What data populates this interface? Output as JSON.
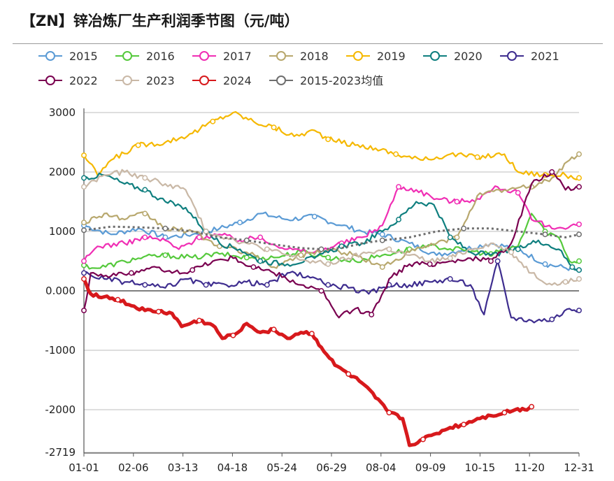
{
  "title": "【ZN】锌冶炼厂生产利润季节图（元/吨）",
  "chart_data": {
    "type": "line",
    "x_ticks": [
      "01-01",
      "02-06",
      "03-13",
      "04-18",
      "05-24",
      "06-29",
      "08-04",
      "09-09",
      "10-15",
      "11-20",
      "12-31"
    ],
    "y_ticks": [
      3000,
      2000,
      1000,
      0,
      -1000,
      -2000,
      -2719
    ],
    "y_tick_labels": [
      "3000",
      "2000",
      "1000",
      "0.000",
      "-1000",
      "-2000",
      "-2719"
    ],
    "ylim": [
      -2719,
      3000
    ],
    "xlim": [
      0,
      365
    ],
    "grid": "horizontal",
    "legend_position": "top",
    "series": [
      {
        "name": "2015",
        "color": "#5b9bd5",
        "points": [
          [
            0,
            1100
          ],
          [
            20,
            950
          ],
          [
            40,
            1050
          ],
          [
            60,
            900
          ],
          [
            80,
            950
          ],
          [
            100,
            1050
          ],
          [
            115,
            1150
          ],
          [
            130,
            1300
          ],
          [
            150,
            1200
          ],
          [
            170,
            1250
          ],
          [
            190,
            1100
          ],
          [
            205,
            1000
          ],
          [
            220,
            950
          ],
          [
            240,
            800
          ],
          [
            260,
            600
          ],
          [
            280,
            700
          ],
          [
            300,
            800
          ],
          [
            320,
            700
          ],
          [
            340,
            450
          ],
          [
            365,
            350
          ]
        ]
      },
      {
        "name": "2016",
        "color": "#55c93c",
        "points": [
          [
            0,
            430
          ],
          [
            10,
            380
          ],
          [
            40,
            550
          ],
          [
            60,
            600
          ],
          [
            80,
            560
          ],
          [
            100,
            620
          ],
          [
            120,
            560
          ],
          [
            140,
            560
          ],
          [
            160,
            660
          ],
          [
            180,
            560
          ],
          [
            200,
            500
          ],
          [
            220,
            600
          ],
          [
            240,
            700
          ],
          [
            260,
            750
          ],
          [
            280,
            680
          ],
          [
            300,
            620
          ],
          [
            320,
            750
          ],
          [
            330,
            1300
          ],
          [
            340,
            1000
          ],
          [
            350,
            900
          ],
          [
            358,
            500
          ],
          [
            365,
            500
          ]
        ]
      },
      {
        "name": "2017",
        "color": "#f02eb4",
        "points": [
          [
            0,
            500
          ],
          [
            10,
            750
          ],
          [
            30,
            800
          ],
          [
            45,
            900
          ],
          [
            60,
            850
          ],
          [
            70,
            700
          ],
          [
            85,
            900
          ],
          [
            100,
            950
          ],
          [
            115,
            850
          ],
          [
            130,
            900
          ],
          [
            150,
            700
          ],
          [
            170,
            650
          ],
          [
            190,
            800
          ],
          [
            205,
            900
          ],
          [
            220,
            1100
          ],
          [
            232,
            1750
          ],
          [
            245,
            1700
          ],
          [
            260,
            1550
          ],
          [
            275,
            1500
          ],
          [
            290,
            1550
          ],
          [
            305,
            1750
          ],
          [
            320,
            1650
          ],
          [
            330,
            1200
          ],
          [
            345,
            1050
          ],
          [
            365,
            1120
          ]
        ]
      },
      {
        "name": "2018",
        "color": "#b8a86e",
        "points": [
          [
            0,
            1150
          ],
          [
            15,
            1300
          ],
          [
            30,
            1200
          ],
          [
            45,
            1300
          ],
          [
            60,
            1050
          ],
          [
            80,
            1000
          ],
          [
            100,
            750
          ],
          [
            120,
            650
          ],
          [
            140,
            400
          ],
          [
            160,
            600
          ],
          [
            180,
            700
          ],
          [
            200,
            600
          ],
          [
            220,
            400
          ],
          [
            240,
            650
          ],
          [
            260,
            800
          ],
          [
            275,
            900
          ],
          [
            290,
            1600
          ],
          [
            310,
            1700
          ],
          [
            330,
            1750
          ],
          [
            345,
            1900
          ],
          [
            358,
            2200
          ],
          [
            365,
            2300
          ]
        ]
      },
      {
        "name": "2019",
        "color": "#f5b800",
        "points": [
          [
            0,
            2280
          ],
          [
            10,
            1950
          ],
          [
            20,
            2200
          ],
          [
            40,
            2450
          ],
          [
            60,
            2500
          ],
          [
            80,
            2650
          ],
          [
            95,
            2850
          ],
          [
            110,
            3000
          ],
          [
            125,
            2850
          ],
          [
            140,
            2750
          ],
          [
            155,
            2600
          ],
          [
            170,
            2700
          ],
          [
            180,
            2550
          ],
          [
            200,
            2450
          ],
          [
            215,
            2400
          ],
          [
            230,
            2300
          ],
          [
            250,
            2200
          ],
          [
            270,
            2300
          ],
          [
            290,
            2250
          ],
          [
            310,
            2300
          ],
          [
            320,
            2000
          ],
          [
            340,
            1950
          ],
          [
            355,
            1950
          ],
          [
            365,
            1900
          ]
        ]
      },
      {
        "name": "2020",
        "color": "#0f7f7f",
        "points": [
          [
            0,
            1900
          ],
          [
            15,
            1950
          ],
          [
            30,
            1800
          ],
          [
            45,
            1700
          ],
          [
            60,
            1500
          ],
          [
            75,
            1400
          ],
          [
            90,
            1000
          ],
          [
            100,
            800
          ],
          [
            115,
            700
          ],
          [
            130,
            500
          ],
          [
            150,
            450
          ],
          [
            170,
            550
          ],
          [
            190,
            750
          ],
          [
            205,
            800
          ],
          [
            220,
            1000
          ],
          [
            232,
            1200
          ],
          [
            245,
            1500
          ],
          [
            258,
            1450
          ],
          [
            270,
            900
          ],
          [
            285,
            650
          ],
          [
            300,
            600
          ],
          [
            320,
            700
          ],
          [
            335,
            850
          ],
          [
            350,
            700
          ],
          [
            360,
            400
          ],
          [
            365,
            350
          ]
        ]
      },
      {
        "name": "2021",
        "color": "#3e2d8f",
        "points": [
          [
            0,
            300
          ],
          [
            15,
            200
          ],
          [
            30,
            150
          ],
          [
            45,
            100
          ],
          [
            60,
            50
          ],
          [
            75,
            200
          ],
          [
            90,
            100
          ],
          [
            105,
            100
          ],
          [
            120,
            150
          ],
          [
            135,
            100
          ],
          [
            150,
            300
          ],
          [
            165,
            250
          ],
          [
            180,
            100
          ],
          [
            195,
            50
          ],
          [
            210,
            -50
          ],
          [
            225,
            100
          ],
          [
            240,
            100
          ],
          [
            255,
            150
          ],
          [
            270,
            200
          ],
          [
            285,
            100
          ],
          [
            295,
            -400
          ],
          [
            305,
            500
          ],
          [
            315,
            -450
          ],
          [
            330,
            -500
          ],
          [
            345,
            -480
          ],
          [
            358,
            -300
          ],
          [
            365,
            -330
          ]
        ]
      },
      {
        "name": "2022",
        "color": "#7a0050",
        "points": [
          [
            0,
            -330
          ],
          [
            5,
            300
          ],
          [
            20,
            250
          ],
          [
            35,
            300
          ],
          [
            50,
            400
          ],
          [
            65,
            300
          ],
          [
            80,
            350
          ],
          [
            95,
            500
          ],
          [
            110,
            550
          ],
          [
            125,
            400
          ],
          [
            140,
            300
          ],
          [
            160,
            100
          ],
          [
            175,
            0
          ],
          [
            188,
            -450
          ],
          [
            200,
            -300
          ],
          [
            212,
            -400
          ],
          [
            225,
            200
          ],
          [
            240,
            450
          ],
          [
            255,
            450
          ],
          [
            270,
            500
          ],
          [
            285,
            550
          ],
          [
            300,
            500
          ],
          [
            315,
            800
          ],
          [
            330,
            1800
          ],
          [
            345,
            2000
          ],
          [
            355,
            1700
          ],
          [
            365,
            1750
          ]
        ]
      },
      {
        "name": "2023",
        "color": "#c9b8a6",
        "points": [
          [
            0,
            1750
          ],
          [
            15,
            1950
          ],
          [
            30,
            2000
          ],
          [
            45,
            1900
          ],
          [
            60,
            1800
          ],
          [
            75,
            1700
          ],
          [
            90,
            1000
          ],
          [
            105,
            900
          ],
          [
            120,
            800
          ],
          [
            135,
            700
          ],
          [
            150,
            600
          ],
          [
            165,
            500
          ],
          [
            180,
            450
          ],
          [
            195,
            550
          ],
          [
            210,
            650
          ],
          [
            225,
            700
          ],
          [
            240,
            600
          ],
          [
            255,
            500
          ],
          [
            270,
            550
          ],
          [
            285,
            700
          ],
          [
            300,
            800
          ],
          [
            315,
            650
          ],
          [
            330,
            300
          ],
          [
            345,
            100
          ],
          [
            355,
            150
          ],
          [
            365,
            200
          ]
        ]
      },
      {
        "name": "2024",
        "color": "#d7191c",
        "points": [
          [
            0,
            200
          ],
          [
            5,
            -50
          ],
          [
            15,
            -100
          ],
          [
            25,
            -150
          ],
          [
            35,
            -250
          ],
          [
            45,
            -330
          ],
          [
            55,
            -350
          ],
          [
            65,
            -380
          ],
          [
            72,
            -600
          ],
          [
            85,
            -500
          ],
          [
            95,
            -580
          ],
          [
            102,
            -800
          ],
          [
            110,
            -750
          ],
          [
            120,
            -550
          ],
          [
            130,
            -700
          ],
          [
            140,
            -650
          ],
          [
            150,
            -800
          ],
          [
            160,
            -700
          ],
          [
            168,
            -720
          ],
          [
            175,
            -950
          ],
          [
            185,
            -1250
          ],
          [
            195,
            -1400
          ],
          [
            205,
            -1550
          ],
          [
            215,
            -1800
          ],
          [
            225,
            -2050
          ],
          [
            235,
            -2150
          ],
          [
            240,
            -2600
          ],
          [
            250,
            -2500
          ],
          [
            260,
            -2400
          ],
          [
            270,
            -2300
          ],
          [
            280,
            -2250
          ],
          [
            290,
            -2150
          ],
          [
            300,
            -2100
          ],
          [
            310,
            -2050
          ],
          [
            318,
            -2000
          ],
          [
            325,
            -2000
          ],
          [
            330,
            -1950
          ]
        ]
      },
      {
        "name": "2015-2023均值",
        "color": "#6e6e6e",
        "dashed": true,
        "points": [
          [
            0,
            1020
          ],
          [
            20,
            1080
          ],
          [
            40,
            1070
          ],
          [
            60,
            1050
          ],
          [
            80,
            1000
          ],
          [
            100,
            900
          ],
          [
            120,
            850
          ],
          [
            140,
            780
          ],
          [
            160,
            720
          ],
          [
            175,
            700
          ],
          [
            190,
            720
          ],
          [
            205,
            800
          ],
          [
            220,
            850
          ],
          [
            240,
            900
          ],
          [
            260,
            1000
          ],
          [
            280,
            1050
          ],
          [
            300,
            1050
          ],
          [
            320,
            1000
          ],
          [
            340,
            950
          ],
          [
            355,
            900
          ],
          [
            365,
            950
          ]
        ]
      }
    ]
  }
}
